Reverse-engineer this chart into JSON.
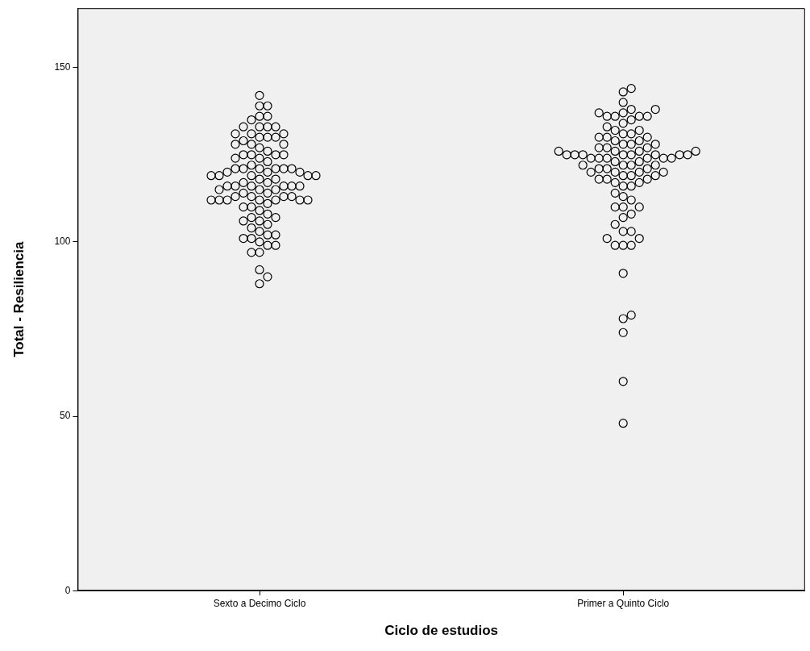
{
  "chart_data": {
    "type": "scatter",
    "xlabel": "Ciclo de estudios",
    "ylabel": "Total - Resiliencia",
    "categories": [
      "Sexto a Decimo Ciclo",
      "Primer a Quinto Ciclo"
    ],
    "ylim": [
      0,
      167
    ],
    "yticks": [
      0,
      50,
      100,
      150
    ],
    "grid": false,
    "legend": false,
    "marker": "circle",
    "series": [
      {
        "color": "#000000",
        "x": [
          "Sexto a Decimo Ciclo",
          "Sexto a Decimo Ciclo",
          "Sexto a Decimo Ciclo",
          "Sexto a Decimo Ciclo",
          "Sexto a Decimo Ciclo",
          "Sexto a Decimo Ciclo",
          "Sexto a Decimo Ciclo",
          "Sexto a Decimo Ciclo",
          "Sexto a Decimo Ciclo",
          "Sexto a Decimo Ciclo",
          "Sexto a Decimo Ciclo",
          "Sexto a Decimo Ciclo",
          "Sexto a Decimo Ciclo",
          "Sexto a Decimo Ciclo",
          "Sexto a Decimo Ciclo",
          "Sexto a Decimo Ciclo",
          "Sexto a Decimo Ciclo",
          "Sexto a Decimo Ciclo",
          "Sexto a Decimo Ciclo",
          "Sexto a Decimo Ciclo",
          "Sexto a Decimo Ciclo",
          "Sexto a Decimo Ciclo",
          "Sexto a Decimo Ciclo",
          "Sexto a Decimo Ciclo",
          "Sexto a Decimo Ciclo",
          "Sexto a Decimo Ciclo",
          "Sexto a Decimo Ciclo",
          "Sexto a Decimo Ciclo",
          "Sexto a Decimo Ciclo",
          "Sexto a Decimo Ciclo",
          "Sexto a Decimo Ciclo",
          "Sexto a Decimo Ciclo",
          "Sexto a Decimo Ciclo",
          "Sexto a Decimo Ciclo",
          "Sexto a Decimo Ciclo",
          "Sexto a Decimo Ciclo",
          "Sexto a Decimo Ciclo",
          "Sexto a Decimo Ciclo",
          "Sexto a Decimo Ciclo",
          "Sexto a Decimo Ciclo",
          "Sexto a Decimo Ciclo",
          "Sexto a Decimo Ciclo",
          "Sexto a Decimo Ciclo",
          "Sexto a Decimo Ciclo",
          "Sexto a Decimo Ciclo",
          "Sexto a Decimo Ciclo",
          "Sexto a Decimo Ciclo",
          "Sexto a Decimo Ciclo",
          "Sexto a Decimo Ciclo",
          "Sexto a Decimo Ciclo",
          "Sexto a Decimo Ciclo",
          "Sexto a Decimo Ciclo",
          "Sexto a Decimo Ciclo",
          "Sexto a Decimo Ciclo",
          "Sexto a Decimo Ciclo",
          "Sexto a Decimo Ciclo",
          "Sexto a Decimo Ciclo",
          "Sexto a Decimo Ciclo",
          "Sexto a Decimo Ciclo",
          "Sexto a Decimo Ciclo",
          "Sexto a Decimo Ciclo",
          "Sexto a Decimo Ciclo",
          "Sexto a Decimo Ciclo",
          "Sexto a Decimo Ciclo",
          "Sexto a Decimo Ciclo",
          "Sexto a Decimo Ciclo",
          "Sexto a Decimo Ciclo",
          "Sexto a Decimo Ciclo",
          "Sexto a Decimo Ciclo",
          "Sexto a Decimo Ciclo",
          "Sexto a Decimo Ciclo",
          "Sexto a Decimo Ciclo",
          "Sexto a Decimo Ciclo",
          "Sexto a Decimo Ciclo",
          "Sexto a Decimo Ciclo",
          "Sexto a Decimo Ciclo",
          "Sexto a Decimo Ciclo",
          "Sexto a Decimo Ciclo",
          "Sexto a Decimo Ciclo",
          "Sexto a Decimo Ciclo",
          "Sexto a Decimo Ciclo",
          "Sexto a Decimo Ciclo",
          "Sexto a Decimo Ciclo",
          "Sexto a Decimo Ciclo",
          "Sexto a Decimo Ciclo",
          "Sexto a Decimo Ciclo",
          "Sexto a Decimo Ciclo",
          "Sexto a Decimo Ciclo",
          "Sexto a Decimo Ciclo",
          "Sexto a Decimo Ciclo",
          "Sexto a Decimo Ciclo",
          "Sexto a Decimo Ciclo",
          "Sexto a Decimo Ciclo",
          "Sexto a Decimo Ciclo"
        ],
        "values": [
          142,
          139,
          139,
          136,
          136,
          135,
          133,
          133,
          133,
          133,
          131,
          131,
          131,
          130,
          130,
          130,
          129,
          128,
          128,
          128,
          127,
          126,
          125,
          125,
          125,
          125,
          124,
          124,
          123,
          122,
          121,
          121,
          121,
          121,
          121,
          121,
          120,
          120,
          120,
          119,
          119,
          119,
          119,
          119,
          118,
          118,
          117,
          117,
          116,
          116,
          116,
          116,
          116,
          116,
          115,
          115,
          115,
          114,
          114,
          113,
          113,
          113,
          113,
          112,
          112,
          112,
          112,
          112,
          112,
          112,
          111,
          110,
          110,
          109,
          108,
          107,
          107,
          106,
          106,
          105,
          104,
          103,
          102,
          102,
          101,
          101,
          100,
          99,
          99,
          97,
          97,
          92,
          90,
          88
        ]
      },
      {
        "color": "#000000",
        "x": [
          "Primer a Quinto Ciclo",
          "Primer a Quinto Ciclo",
          "Primer a Quinto Ciclo",
          "Primer a Quinto Ciclo",
          "Primer a Quinto Ciclo",
          "Primer a Quinto Ciclo",
          "Primer a Quinto Ciclo",
          "Primer a Quinto Ciclo",
          "Primer a Quinto Ciclo",
          "Primer a Quinto Ciclo",
          "Primer a Quinto Ciclo",
          "Primer a Quinto Ciclo",
          "Primer a Quinto Ciclo",
          "Primer a Quinto Ciclo",
          "Primer a Quinto Ciclo",
          "Primer a Quinto Ciclo",
          "Primer a Quinto Ciclo",
          "Primer a Quinto Ciclo",
          "Primer a Quinto Ciclo",
          "Primer a Quinto Ciclo",
          "Primer a Quinto Ciclo",
          "Primer a Quinto Ciclo",
          "Primer a Quinto Ciclo",
          "Primer a Quinto Ciclo",
          "Primer a Quinto Ciclo",
          "Primer a Quinto Ciclo",
          "Primer a Quinto Ciclo",
          "Primer a Quinto Ciclo",
          "Primer a Quinto Ciclo",
          "Primer a Quinto Ciclo",
          "Primer a Quinto Ciclo",
          "Primer a Quinto Ciclo",
          "Primer a Quinto Ciclo",
          "Primer a Quinto Ciclo",
          "Primer a Quinto Ciclo",
          "Primer a Quinto Ciclo",
          "Primer a Quinto Ciclo",
          "Primer a Quinto Ciclo",
          "Primer a Quinto Ciclo",
          "Primer a Quinto Ciclo",
          "Primer a Quinto Ciclo",
          "Primer a Quinto Ciclo",
          "Primer a Quinto Ciclo",
          "Primer a Quinto Ciclo",
          "Primer a Quinto Ciclo",
          "Primer a Quinto Ciclo",
          "Primer a Quinto Ciclo",
          "Primer a Quinto Ciclo",
          "Primer a Quinto Ciclo",
          "Primer a Quinto Ciclo",
          "Primer a Quinto Ciclo",
          "Primer a Quinto Ciclo",
          "Primer a Quinto Ciclo",
          "Primer a Quinto Ciclo",
          "Primer a Quinto Ciclo",
          "Primer a Quinto Ciclo",
          "Primer a Quinto Ciclo",
          "Primer a Quinto Ciclo",
          "Primer a Quinto Ciclo",
          "Primer a Quinto Ciclo",
          "Primer a Quinto Ciclo",
          "Primer a Quinto Ciclo",
          "Primer a Quinto Ciclo",
          "Primer a Quinto Ciclo",
          "Primer a Quinto Ciclo",
          "Primer a Quinto Ciclo",
          "Primer a Quinto Ciclo",
          "Primer a Quinto Ciclo",
          "Primer a Quinto Ciclo",
          "Primer a Quinto Ciclo",
          "Primer a Quinto Ciclo",
          "Primer a Quinto Ciclo",
          "Primer a Quinto Ciclo",
          "Primer a Quinto Ciclo",
          "Primer a Quinto Ciclo",
          "Primer a Quinto Ciclo",
          "Primer a Quinto Ciclo",
          "Primer a Quinto Ciclo",
          "Primer a Quinto Ciclo",
          "Primer a Quinto Ciclo",
          "Primer a Quinto Ciclo",
          "Primer a Quinto Ciclo",
          "Primer a Quinto Ciclo",
          "Primer a Quinto Ciclo",
          "Primer a Quinto Ciclo",
          "Primer a Quinto Ciclo",
          "Primer a Quinto Ciclo",
          "Primer a Quinto Ciclo",
          "Primer a Quinto Ciclo",
          "Primer a Quinto Ciclo",
          "Primer a Quinto Ciclo",
          "Primer a Quinto Ciclo"
        ],
        "values": [
          48,
          60,
          74,
          78,
          79,
          91,
          99,
          99,
          99,
          101,
          101,
          103,
          103,
          105,
          107,
          108,
          110,
          110,
          110,
          112,
          113,
          114,
          116,
          116,
          117,
          117,
          118,
          118,
          118,
          119,
          119,
          119,
          120,
          120,
          120,
          120,
          121,
          121,
          121,
          122,
          122,
          122,
          122,
          123,
          123,
          124,
          124,
          124,
          124,
          124,
          124,
          125,
          125,
          125,
          125,
          125,
          125,
          125,
          125,
          126,
          126,
          126,
          126,
          127,
          127,
          127,
          128,
          128,
          128,
          129,
          129,
          130,
          130,
          130,
          131,
          131,
          132,
          132,
          133,
          134,
          135,
          136,
          136,
          136,
          136,
          137,
          137,
          138,
          138,
          140,
          143,
          144
        ]
      }
    ]
  }
}
